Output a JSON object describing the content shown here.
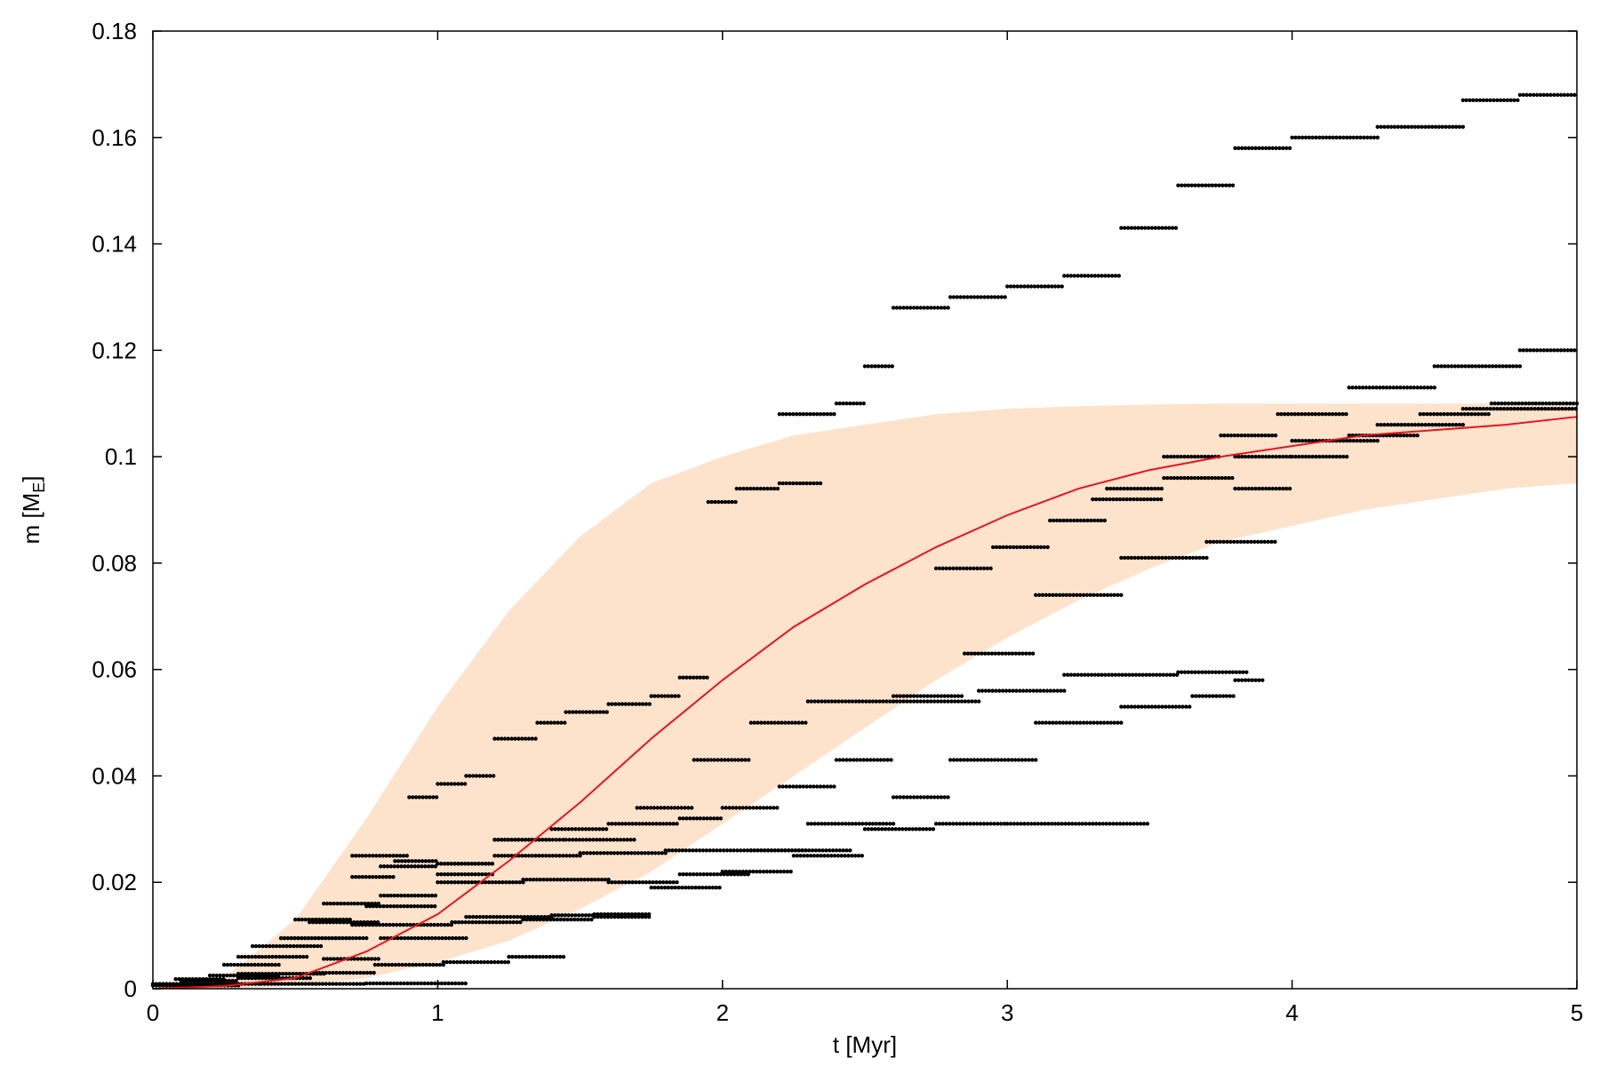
{
  "chart_data": {
    "type": "scatter",
    "xlabel": "t [Myr]",
    "ylabel_main": "m [M",
    "ylabel_sub": "E",
    "ylabel_close": "]",
    "xlim": [
      0,
      5
    ],
    "ylim": [
      0,
      0.18
    ],
    "x_ticks": [
      {
        "value": 0,
        "label": "0"
      },
      {
        "value": 1,
        "label": "1"
      },
      {
        "value": 2,
        "label": "2"
      },
      {
        "value": 3,
        "label": "3"
      },
      {
        "value": 4,
        "label": "4"
      },
      {
        "value": 5,
        "label": "5"
      }
    ],
    "y_ticks": [
      {
        "value": 0,
        "label": "0"
      },
      {
        "value": 0.02,
        "label": "0.02"
      },
      {
        "value": 0.04,
        "label": "0.04"
      },
      {
        "value": 0.06,
        "label": "0.06"
      },
      {
        "value": 0.08,
        "label": "0.08"
      },
      {
        "value": 0.1,
        "label": "0.1"
      },
      {
        "value": 0.12,
        "label": "0.12"
      },
      {
        "value": 0.14,
        "label": "0.14"
      },
      {
        "value": 0.16,
        "label": "0.16"
      },
      {
        "value": 0.18,
        "label": "0.18"
      }
    ],
    "grid": false,
    "colors": {
      "band": "#fde3cc",
      "curve": "#e8141c",
      "points": "#000000",
      "frame": "#000000"
    },
    "band": {
      "x": [
        0,
        0.25,
        0.5,
        0.75,
        1.0,
        1.25,
        1.5,
        1.75,
        2.0,
        2.25,
        2.5,
        2.75,
        3.0,
        3.25,
        3.5,
        3.75,
        4.0,
        4.25,
        4.5,
        4.75,
        5.0
      ],
      "upper": [
        0.0,
        0.002,
        0.013,
        0.032,
        0.053,
        0.071,
        0.085,
        0.095,
        0.1,
        0.104,
        0.106,
        0.108,
        0.109,
        0.1095,
        0.1098,
        0.11,
        0.11,
        0.11,
        0.11,
        0.11,
        0.11
      ],
      "lower": [
        0.0,
        0.0,
        0.0005,
        0.002,
        0.005,
        0.009,
        0.015,
        0.022,
        0.031,
        0.04,
        0.049,
        0.058,
        0.066,
        0.073,
        0.079,
        0.084,
        0.087,
        0.09,
        0.092,
        0.094,
        0.095
      ]
    },
    "curve": {
      "x": [
        0,
        0.25,
        0.5,
        0.75,
        1.0,
        1.25,
        1.5,
        1.75,
        2.0,
        2.25,
        2.5,
        2.75,
        3.0,
        3.25,
        3.5,
        3.75,
        4.0,
        4.25,
        4.5,
        4.75,
        5.0
      ],
      "y": [
        0.0,
        0.0005,
        0.002,
        0.007,
        0.014,
        0.024,
        0.035,
        0.047,
        0.058,
        0.068,
        0.076,
        0.083,
        0.089,
        0.094,
        0.0975,
        0.1,
        0.102,
        0.104,
        0.105,
        0.106,
        0.1075
      ]
    },
    "series": [
      {
        "segments": [
          [
            0,
            0.38,
            0.0009
          ],
          [
            0.38,
            0.75,
            0.0009
          ],
          [
            0.75,
            1.1,
            0.001
          ]
        ]
      },
      {
        "segments": [
          [
            0,
            0.3,
            0.0006
          ],
          [
            0.3,
            0.56,
            0.002
          ],
          [
            0.56,
            0.78,
            0.003
          ],
          [
            0.78,
            1.02,
            0.0045
          ],
          [
            1.02,
            1.25,
            0.005
          ],
          [
            1.25,
            1.45,
            0.006
          ]
        ]
      },
      {
        "segments": [
          [
            0.1,
            0.3,
            0.0015
          ],
          [
            0.3,
            0.6,
            0.0028
          ],
          [
            0.6,
            0.8,
            0.0056
          ],
          [
            0.8,
            1.1,
            0.0095
          ],
          [
            1.1,
            1.4,
            0.0135
          ],
          [
            1.4,
            1.55,
            0.0138
          ],
          [
            1.55,
            1.75,
            0.0135
          ]
        ]
      },
      {
        "segments": [
          [
            0.08,
            0.25,
            0.0018
          ],
          [
            0.25,
            0.45,
            0.0045
          ],
          [
            0.45,
            0.7,
            0.0095
          ],
          [
            0.7,
            1.05,
            0.012
          ],
          [
            1.05,
            1.3,
            0.0125
          ],
          [
            1.3,
            1.55,
            0.013
          ],
          [
            1.55,
            1.75,
            0.014
          ],
          [
            1.75,
            2.0,
            0.019
          ],
          [
            2.0,
            2.25,
            0.022
          ],
          [
            2.25,
            2.5,
            0.025
          ],
          [
            2.5,
            2.75,
            0.03
          ],
          [
            2.75,
            3.0,
            0.031
          ],
          [
            3.0,
            3.5,
            0.031
          ]
        ]
      },
      {
        "segments": [
          [
            0.2,
            0.45,
            0.0025
          ],
          [
            0.45,
            0.75,
            0.0095
          ],
          [
            0.75,
            1.0,
            0.0155
          ],
          [
            1.0,
            1.3,
            0.02
          ],
          [
            1.3,
            1.6,
            0.0205
          ],
          [
            1.6,
            1.85,
            0.02
          ],
          [
            1.85,
            2.1,
            0.0215
          ],
          [
            2.1,
            2.3,
            0.026
          ],
          [
            2.3,
            2.6,
            0.031
          ],
          [
            2.6,
            2.8,
            0.036
          ],
          [
            2.8,
            3.1,
            0.043
          ],
          [
            3.1,
            3.4,
            0.05
          ],
          [
            3.4,
            3.65,
            0.053
          ],
          [
            3.65,
            3.8,
            0.055
          ],
          [
            3.8,
            3.9,
            0.058
          ]
        ]
      },
      {
        "segments": [
          [
            0.3,
            0.55,
            0.006
          ],
          [
            0.55,
            0.8,
            0.0125
          ],
          [
            0.8,
            1.0,
            0.0175
          ],
          [
            1.0,
            1.2,
            0.0215
          ],
          [
            1.2,
            1.5,
            0.025
          ],
          [
            1.5,
            1.8,
            0.0255
          ],
          [
            1.8,
            2.1,
            0.026
          ],
          [
            2.1,
            2.45,
            0.026
          ]
        ]
      },
      {
        "segments": [
          [
            0.35,
            0.6,
            0.008
          ],
          [
            0.6,
            0.8,
            0.016
          ],
          [
            0.8,
            1.0,
            0.023
          ],
          [
            1.0,
            1.2,
            0.0235
          ],
          [
            1.2,
            1.4,
            0.028
          ],
          [
            1.4,
            1.6,
            0.03
          ],
          [
            1.6,
            1.85,
            0.031
          ],
          [
            1.85,
            2.0,
            0.032
          ],
          [
            2.0,
            2.2,
            0.034
          ],
          [
            2.2,
            2.4,
            0.038
          ],
          [
            2.4,
            2.6,
            0.043
          ],
          [
            2.6,
            2.9,
            0.054
          ],
          [
            2.9,
            3.2,
            0.056
          ],
          [
            3.2,
            3.6,
            0.059
          ],
          [
            3.6,
            3.85,
            0.0595
          ]
        ]
      },
      {
        "segments": [
          [
            0.5,
            0.7,
            0.013
          ],
          [
            0.7,
            0.85,
            0.021
          ],
          [
            0.85,
            1.0,
            0.024
          ],
          [
            1.0,
            1.2,
            0.0235
          ],
          [
            1.2,
            1.45,
            0.028
          ],
          [
            1.45,
            1.7,
            0.028
          ],
          [
            1.7,
            1.9,
            0.034
          ],
          [
            1.9,
            2.1,
            0.043
          ],
          [
            2.1,
            2.3,
            0.05
          ],
          [
            2.3,
            2.6,
            0.054
          ],
          [
            2.6,
            2.85,
            0.055
          ],
          [
            2.85,
            3.1,
            0.063
          ],
          [
            3.1,
            3.4,
            0.074
          ],
          [
            3.4,
            3.7,
            0.081
          ],
          [
            3.7,
            3.95,
            0.084
          ]
        ]
      },
      {
        "segments": [
          [
            0.7,
            0.9,
            0.025
          ],
          [
            0.9,
            1.0,
            0.036
          ],
          [
            1.0,
            1.1,
            0.0385
          ],
          [
            1.1,
            1.2,
            0.04
          ],
          [
            1.2,
            1.35,
            0.047
          ],
          [
            1.35,
            1.45,
            0.05
          ],
          [
            1.45,
            1.6,
            0.052
          ],
          [
            1.6,
            1.75,
            0.0535
          ],
          [
            1.75,
            1.85,
            0.055
          ],
          [
            1.85,
            1.95,
            0.0585
          ]
        ]
      },
      {
        "segments": [
          [
            1.95,
            2.05,
            0.0915
          ],
          [
            2.05,
            2.2,
            0.094
          ],
          [
            2.2,
            2.35,
            0.095
          ]
        ]
      },
      {
        "segments": [
          [
            2.2,
            2.4,
            0.108
          ],
          [
            2.4,
            2.5,
            0.11
          ],
          [
            2.5,
            2.6,
            0.117
          ],
          [
            2.6,
            2.8,
            0.128
          ],
          [
            2.8,
            3.0,
            0.13
          ],
          [
            3.0,
            3.2,
            0.132
          ],
          [
            3.2,
            3.4,
            0.134
          ],
          [
            3.4,
            3.6,
            0.143
          ],
          [
            3.6,
            3.8,
            0.151
          ],
          [
            3.8,
            4.0,
            0.158
          ],
          [
            4.0,
            4.3,
            0.16
          ],
          [
            4.3,
            4.6,
            0.162
          ],
          [
            4.6,
            4.8,
            0.167
          ],
          [
            4.8,
            5.0,
            0.168
          ]
        ]
      },
      {
        "segments": [
          [
            2.75,
            2.95,
            0.079
          ],
          [
            2.95,
            3.15,
            0.083
          ],
          [
            3.15,
            3.35,
            0.088
          ],
          [
            3.35,
            3.55,
            0.094
          ],
          [
            3.55,
            3.75,
            0.1
          ],
          [
            3.75,
            3.95,
            0.104
          ],
          [
            3.95,
            4.2,
            0.108
          ],
          [
            4.2,
            4.5,
            0.113
          ],
          [
            4.5,
            4.8,
            0.117
          ],
          [
            4.8,
            5.0,
            0.12
          ]
        ]
      },
      {
        "segments": [
          [
            3.3,
            3.55,
            0.092
          ],
          [
            3.55,
            3.8,
            0.096
          ],
          [
            3.8,
            4.0,
            0.1
          ],
          [
            4.0,
            4.3,
            0.103
          ],
          [
            4.3,
            4.6,
            0.106
          ],
          [
            4.6,
            5.0,
            0.109
          ]
        ]
      },
      {
        "segments": [
          [
            3.8,
            4.0,
            0.094
          ],
          [
            4.0,
            4.2,
            0.1
          ],
          [
            4.2,
            4.45,
            0.104
          ],
          [
            4.45,
            4.7,
            0.108
          ],
          [
            4.7,
            5.0,
            0.11
          ]
        ]
      }
    ]
  }
}
